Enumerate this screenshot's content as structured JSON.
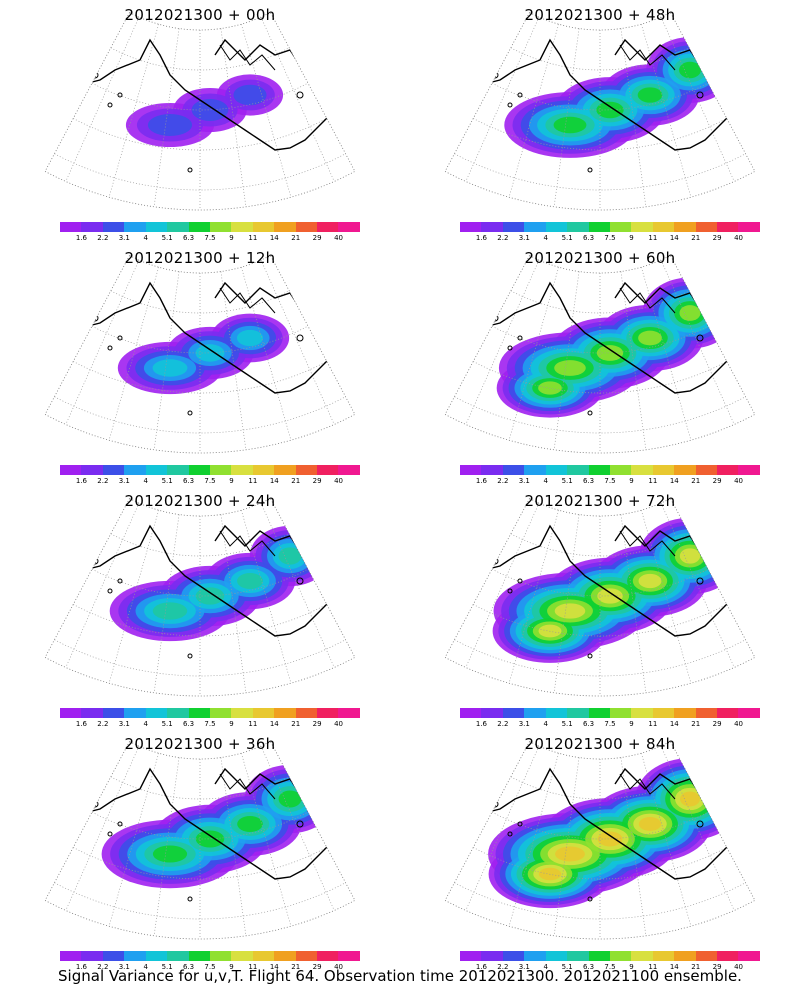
{
  "panels": [
    {
      "title": "2012021300 + 00h"
    },
    {
      "title": "2012021300 + 48h"
    },
    {
      "title": "2012021300 + 12h"
    },
    {
      "title": "2012021300 + 60h"
    },
    {
      "title": "2012021300 + 24h"
    },
    {
      "title": "2012021300 + 72h"
    },
    {
      "title": "2012021300 + 36h"
    },
    {
      "title": "2012021300 + 84h"
    }
  ],
  "colorbar": {
    "labels": [
      "1.6",
      "2.2",
      "3.1",
      "4",
      "5.1",
      "6.3",
      "7.5",
      "9",
      "11",
      "14",
      "21",
      "29",
      "40"
    ],
    "colors": [
      "#a020f0",
      "#7a2cf0",
      "#3c4fe8",
      "#1fa0f0",
      "#12c4d8",
      "#20c8a0",
      "#10d030",
      "#90e030",
      "#d8e040",
      "#e8c830",
      "#f0a020",
      "#f06030",
      "#f02060",
      "#f01890"
    ]
  },
  "footer": "Signal Variance for u,v,T. Flight 64. Observation time 2012021300. 2012021100 ensemble.",
  "map": {
    "projection": "polar stereographic sector",
    "coastline_color": "#000000",
    "grid_color": "#999999"
  }
}
